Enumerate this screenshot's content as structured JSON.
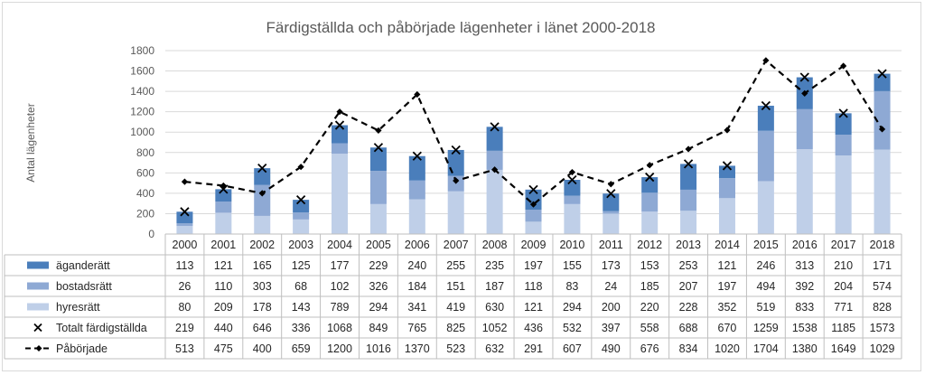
{
  "chart_data": {
    "type": "bar",
    "title": "Färdigställda och påbörjade lägenheter i länet 2000-2018",
    "xlabel": "",
    "ylabel": "Antal lägenheter",
    "ylim": [
      0,
      1800
    ],
    "yticks": [
      0,
      200,
      400,
      600,
      800,
      1000,
      1200,
      1400,
      1600,
      1800
    ],
    "grid": true,
    "legend": "table-left",
    "categories": [
      "2000",
      "2001",
      "2002",
      "2003",
      "2004",
      "2005",
      "2006",
      "2007",
      "2008",
      "2009",
      "2010",
      "2011",
      "2012",
      "2013",
      "2014",
      "2015",
      "2016",
      "2017",
      "2018"
    ],
    "series": [
      {
        "name": "äganderätt",
        "kind": "stacked-bar",
        "color": "#4a7ebb",
        "values": [
          113,
          121,
          165,
          125,
          177,
          229,
          240,
          255,
          235,
          197,
          155,
          173,
          153,
          253,
          121,
          246,
          313,
          210,
          171
        ]
      },
      {
        "name": "bostadsrätt",
        "kind": "stacked-bar",
        "color": "#8ea9d4",
        "values": [
          26,
          110,
          303,
          68,
          102,
          326,
          184,
          151,
          187,
          118,
          83,
          24,
          185,
          207,
          197,
          494,
          392,
          204,
          574
        ]
      },
      {
        "name": "hyresrätt",
        "kind": "stacked-bar",
        "color": "#bfcfe8",
        "values": [
          80,
          209,
          178,
          143,
          789,
          294,
          341,
          419,
          630,
          121,
          294,
          200,
          220,
          228,
          352,
          519,
          833,
          771,
          828
        ]
      },
      {
        "name": "Totalt färdigställda",
        "kind": "marker-x",
        "color": "#000000",
        "values": [
          219,
          440,
          646,
          336,
          1068,
          849,
          765,
          825,
          1052,
          436,
          532,
          397,
          558,
          688,
          670,
          1259,
          1538,
          1185,
          1573
        ]
      },
      {
        "name": "Påbörjade",
        "kind": "dashed-line-diamond",
        "color": "#000000",
        "values": [
          513,
          475,
          400,
          659,
          1200,
          1016,
          1370,
          523,
          632,
          291,
          607,
          490,
          676,
          834,
          1020,
          1704,
          1380,
          1649,
          1029
        ]
      }
    ]
  }
}
